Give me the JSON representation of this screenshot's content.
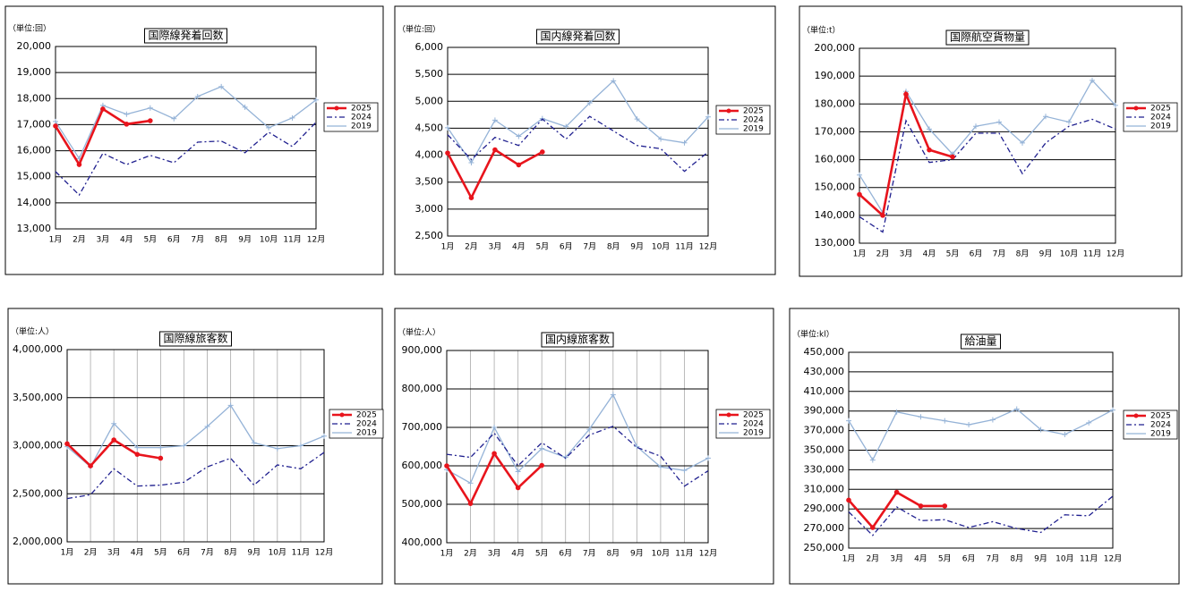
{
  "chart_data": [
    {
      "type": "line",
      "title": "国際線発着回数",
      "unit_label": "（単位:回）",
      "categories": [
        "1月",
        "2月",
        "3月",
        "4月",
        "5月",
        "6月",
        "7月",
        "8月",
        "9月",
        "10月",
        "11月",
        "12月"
      ],
      "ylim": [
        13000,
        20000
      ],
      "yticks": [
        {
          "value": 13000,
          "label": "13,000"
        },
        {
          "value": 14000,
          "label": "14,000"
        },
        {
          "value": 15000,
          "label": "15,000"
        },
        {
          "value": 16000,
          "label": "16,000"
        },
        {
          "value": 17000,
          "label": "17,000"
        },
        {
          "value": 18000,
          "label": "18,000"
        },
        {
          "value": 19000,
          "label": "19,000"
        },
        {
          "value": 20000,
          "label": "20,000"
        }
      ],
      "grid": true,
      "vgrid": false,
      "series": [
        {
          "name": "2025",
          "color": "#e8141c",
          "style": "solid",
          "marker": "circle",
          "values": [
            16950,
            15470,
            17600,
            17020,
            17150,
            null,
            null,
            null,
            null,
            null,
            null,
            null
          ]
        },
        {
          "name": "2024",
          "color": "#1f1f8f",
          "style": "dashdot",
          "marker": "none",
          "values": [
            15200,
            14300,
            15900,
            15470,
            15820,
            15540,
            16330,
            16370,
            15920,
            16710,
            16160,
            17090
          ]
        },
        {
          "name": "2019",
          "color": "#95b3d7",
          "style": "solid",
          "marker": "plus",
          "values": [
            17120,
            15700,
            17740,
            17400,
            17640,
            17230,
            18080,
            18460,
            17670,
            16880,
            17260,
            17950
          ]
        }
      ]
    },
    {
      "type": "line",
      "title": "国内線発着回数",
      "unit_label": "（単位:回）",
      "categories": [
        "1月",
        "2月",
        "3月",
        "4月",
        "5月",
        "6月",
        "7月",
        "8月",
        "9月",
        "10月",
        "11月",
        "12月"
      ],
      "ylim": [
        2500,
        6000
      ],
      "yticks": [
        {
          "value": 2500,
          "label": "2,500"
        },
        {
          "value": 3000,
          "label": "3,000"
        },
        {
          "value": 3500,
          "label": "3,500"
        },
        {
          "value": 4000,
          "label": "4,000"
        },
        {
          "value": 4500,
          "label": "4,500"
        },
        {
          "value": 5000,
          "label": "5,000"
        },
        {
          "value": 5500,
          "label": "5,500"
        },
        {
          "value": 6000,
          "label": "6,000"
        }
      ],
      "grid": true,
      "vgrid": false,
      "series": [
        {
          "name": "2025",
          "color": "#e8141c",
          "style": "solid",
          "marker": "circle",
          "values": [
            4040,
            3210,
            4100,
            3820,
            4060,
            null,
            null,
            null,
            null,
            null,
            null,
            null
          ]
        },
        {
          "name": "2024",
          "color": "#1f1f8f",
          "style": "dashdot",
          "marker": "none",
          "values": [
            4380,
            3920,
            4330,
            4180,
            4670,
            4300,
            4720,
            4450,
            4180,
            4120,
            3700,
            4060
          ]
        },
        {
          "name": "2019",
          "color": "#95b3d7",
          "style": "solid",
          "marker": "plus",
          "values": [
            4510,
            3860,
            4650,
            4350,
            4680,
            4530,
            4970,
            5380,
            4670,
            4300,
            4230,
            4710
          ]
        }
      ]
    },
    {
      "type": "line",
      "title": "国際航空貨物量",
      "unit_label": "（単位:t）",
      "categories": [
        "1月",
        "2月",
        "3月",
        "4月",
        "5月",
        "6月",
        "7月",
        "8月",
        "9月",
        "10月",
        "11月",
        "12月"
      ],
      "ylim": [
        130000,
        200000
      ],
      "yticks": [
        {
          "value": 130000,
          "label": "130,000"
        },
        {
          "value": 140000,
          "label": "140,000"
        },
        {
          "value": 150000,
          "label": "150,000"
        },
        {
          "value": 160000,
          "label": "160,000"
        },
        {
          "value": 170000,
          "label": "170,000"
        },
        {
          "value": 180000,
          "label": "180,000"
        },
        {
          "value": 190000,
          "label": "190,000"
        },
        {
          "value": 200000,
          "label": "200,000"
        }
      ],
      "grid": true,
      "vgrid": false,
      "series": [
        {
          "name": "2025",
          "color": "#e8141c",
          "style": "solid",
          "marker": "circle",
          "values": [
            147500,
            140000,
            183500,
            163500,
            161000,
            null,
            null,
            null,
            null,
            null,
            null,
            null
          ]
        },
        {
          "name": "2024",
          "color": "#1f1f8f",
          "style": "dashdot",
          "marker": "none",
          "values": [
            139500,
            134000,
            174000,
            159000,
            160000,
            169500,
            169500,
            155000,
            166000,
            172000,
            174500,
            171000
          ]
        },
        {
          "name": "2019",
          "color": "#95b3d7",
          "style": "solid",
          "marker": "plus",
          "values": [
            154500,
            141000,
            184500,
            171000,
            162000,
            172000,
            173500,
            166000,
            175500,
            173500,
            188500,
            179500
          ]
        }
      ]
    },
    {
      "type": "line",
      "title": "国際線旅客数",
      "unit_label": "（単位:人）",
      "categories": [
        "1月",
        "2月",
        "3月",
        "4月",
        "5月",
        "6月",
        "7月",
        "8月",
        "9月",
        "10月",
        "11月",
        "12月"
      ],
      "ylim": [
        2000000,
        4000000
      ],
      "yticks": [
        {
          "value": 2000000,
          "label": "2,000,000"
        },
        {
          "value": 2500000,
          "label": "2,500,000"
        },
        {
          "value": 3000000,
          "label": "3,000,000"
        },
        {
          "value": 3500000,
          "label": "3,500,000"
        },
        {
          "value": 4000000,
          "label": "4,000,000"
        }
      ],
      "grid": true,
      "vgrid": true,
      "series": [
        {
          "name": "2025",
          "color": "#e8141c",
          "style": "solid",
          "marker": "circle",
          "values": [
            3020000,
            2790000,
            3060000,
            2910000,
            2870000,
            null,
            null,
            null,
            null,
            null,
            null,
            null
          ]
        },
        {
          "name": "2024",
          "color": "#1f1f8f",
          "style": "dashdot",
          "marker": "none",
          "values": [
            2450000,
            2490000,
            2760000,
            2580000,
            2590000,
            2620000,
            2780000,
            2870000,
            2590000,
            2800000,
            2760000,
            2930000
          ]
        },
        {
          "name": "2019",
          "color": "#95b3d7",
          "style": "solid",
          "marker": "plus",
          "values": [
            2990000,
            2780000,
            3230000,
            2980000,
            2980000,
            3000000,
            3200000,
            3420000,
            3030000,
            2970000,
            3000000,
            3100000
          ]
        }
      ]
    },
    {
      "type": "line",
      "title": "国内線旅客数",
      "unit_label": "（単位:人）",
      "categories": [
        "1月",
        "2月",
        "3月",
        "4月",
        "5月",
        "6月",
        "7月",
        "8月",
        "9月",
        "10月",
        "11月",
        "12月"
      ],
      "ylim": [
        400000,
        900000
      ],
      "yticks": [
        {
          "value": 400000,
          "label": "400,000"
        },
        {
          "value": 500000,
          "label": "500,000"
        },
        {
          "value": 600000,
          "label": "600,000"
        },
        {
          "value": 700000,
          "label": "700,000"
        },
        {
          "value": 800000,
          "label": "800,000"
        },
        {
          "value": 900000,
          "label": "900,000"
        }
      ],
      "grid": true,
      "vgrid": true,
      "series": [
        {
          "name": "2025",
          "color": "#e8141c",
          "style": "solid",
          "marker": "circle",
          "values": [
            600000,
            502000,
            632000,
            543000,
            601000,
            null,
            null,
            null,
            null,
            null,
            null,
            null
          ]
        },
        {
          "name": "2024",
          "color": "#1f1f8f",
          "style": "dashdot",
          "marker": "none",
          "values": [
            630000,
            622000,
            685000,
            600000,
            660000,
            620000,
            680000,
            703000,
            648000,
            625000,
            547000,
            587000
          ]
        },
        {
          "name": "2019",
          "color": "#95b3d7",
          "style": "solid",
          "marker": "plus",
          "values": [
            590000,
            555000,
            700000,
            585000,
            645000,
            622000,
            695000,
            785000,
            650000,
            597000,
            588000,
            620000
          ]
        }
      ]
    },
    {
      "type": "line",
      "title": "給油量",
      "unit_label": "（単位:kl）",
      "categories": [
        "1月",
        "2月",
        "3月",
        "4月",
        "5月",
        "6月",
        "7月",
        "8月",
        "9月",
        "10月",
        "11月",
        "12月"
      ],
      "ylim": [
        250000,
        450000
      ],
      "yticks": [
        {
          "value": 250000,
          "label": "250,000"
        },
        {
          "value": 270000,
          "label": "270,000"
        },
        {
          "value": 290000,
          "label": "290,000"
        },
        {
          "value": 310000,
          "label": "310,000"
        },
        {
          "value": 330000,
          "label": "330,000"
        },
        {
          "value": 350000,
          "label": "350,000"
        },
        {
          "value": 370000,
          "label": "370,000"
        },
        {
          "value": 390000,
          "label": "390,000"
        },
        {
          "value": 410000,
          "label": "410,000"
        },
        {
          "value": 430000,
          "label": "430,000"
        },
        {
          "value": 450000,
          "label": "450,000"
        }
      ],
      "grid": true,
      "vgrid": false,
      "series": [
        {
          "name": "2025",
          "color": "#e8141c",
          "style": "solid",
          "marker": "circle",
          "values": [
            299000,
            271000,
            307000,
            293000,
            293000,
            null,
            null,
            null,
            null,
            null,
            null,
            null
          ]
        },
        {
          "name": "2024",
          "color": "#1f1f8f",
          "style": "dashdot",
          "marker": "none",
          "values": [
            287000,
            263000,
            292000,
            278000,
            279000,
            271000,
            277000,
            270000,
            266000,
            284000,
            283000,
            303000
          ]
        },
        {
          "name": "2019",
          "color": "#95b3d7",
          "style": "solid",
          "marker": "plus",
          "values": [
            380000,
            340000,
            389000,
            384000,
            380000,
            376000,
            381000,
            392000,
            371000,
            366000,
            378000,
            391000
          ]
        }
      ]
    }
  ]
}
